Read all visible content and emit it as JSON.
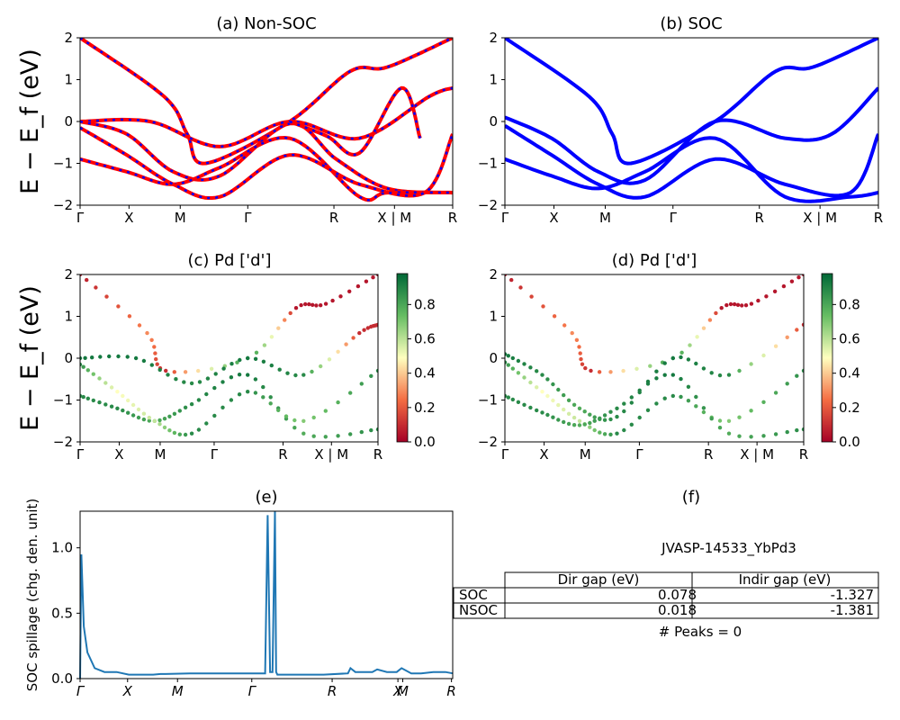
{
  "figure": {
    "ylabel_main": "E − E_f (eV)",
    "yticks": [
      "2",
      "1",
      "0",
      "−1",
      "−2"
    ],
    "kpath_labels": [
      "Γ",
      "X",
      "M",
      "Γ",
      "R",
      "X | M",
      "R"
    ],
    "kpath_labels_e": [
      "Γ",
      "X",
      "M",
      "Γ",
      "R",
      "X",
      "M",
      "R"
    ],
    "colorbar_ticks": [
      "0.8",
      "0.6",
      "0.4",
      "0.2",
      "0.0"
    ],
    "spillage_yticks": [
      "1.0",
      "0.5",
      "0.0"
    ],
    "spillage_ylabel": "SOC spillage (chg. den. unit)"
  },
  "panels": {
    "a": {
      "title": "(a) Non-SOC"
    },
    "b": {
      "title": "(b) SOC"
    },
    "c": {
      "title": "(c)  Pd ['d']"
    },
    "d": {
      "title": "(d) Pd ['d']"
    },
    "e": {
      "title": "(e)"
    },
    "f": {
      "title": "(f)",
      "material": "JVASP-14533_YbPd3",
      "col_headers": [
        "Dir gap (eV)",
        "Indir gap (eV)"
      ],
      "rows": [
        {
          "label": "SOC",
          "dir": "0.078",
          "indir": "-1.327"
        },
        {
          "label": "NSOC",
          "dir": "0.018",
          "indir": "-1.381"
        }
      ],
      "peaks_text": "# Peaks = 0"
    }
  },
  "colors": {
    "nonsoc": "#ff0000",
    "soc": "#0000ff",
    "spillage": "#1f77b4"
  },
  "chart_data": [
    {
      "type": "line",
      "title": "(a) Non-SOC",
      "ylabel": "E − E_f (eV)",
      "ylim": [
        -2,
        2
      ],
      "x_ticks": [
        "Γ",
        "X",
        "M",
        "Γ",
        "R",
        "X | M",
        "R"
      ],
      "series": [
        {
          "name": "",
          "x": [
            0,
            1.8,
            2.3,
            2.7,
            4.5,
            5.8,
            6.6,
            8.0
          ],
          "values": [
            2.0,
            0.6,
            -0.3,
            -1.0,
            0.0,
            1.2,
            1.3,
            2.0
          ]
        },
        {
          "name": "",
          "x": [
            0,
            1.5,
            3.0,
            4.5,
            6.0,
            7.5,
            8.0
          ],
          "values": [
            0.0,
            0.0,
            -0.6,
            0.0,
            -0.4,
            0.6,
            0.8
          ]
        },
        {
          "name": "",
          "x": [
            0,
            1.0,
            2.0,
            3.0,
            4.5,
            5.5,
            6.6,
            8.0
          ],
          "values": [
            0.0,
            -0.3,
            -1.2,
            -1.3,
            -0.05,
            -0.9,
            -1.6,
            -1.7
          ]
        },
        {
          "name": "",
          "x": [
            0,
            1.0,
            2.0,
            3.0,
            4.5,
            6.0,
            6.6,
            8.0
          ],
          "values": [
            -0.9,
            -1.2,
            -1.5,
            -1.1,
            -0.4,
            -1.8,
            -1.7,
            -1.7
          ]
        },
        {
          "name": "",
          "x": [
            0,
            1.0,
            2.0,
            3.0,
            4.5,
            6.0,
            7.4,
            8.0
          ],
          "values": [
            -0.15,
            -0.8,
            -1.5,
            -1.8,
            -0.8,
            -1.5,
            -1.7,
            -0.3
          ]
        },
        {
          "name": "",
          "x": [
            4.5,
            5.3,
            6.0,
            6.9,
            7.3
          ],
          "values": [
            0.0,
            -0.35,
            -0.75,
            0.8,
            -0.4
          ]
        }
      ]
    },
    {
      "type": "line",
      "title": "(b) SOC",
      "ylim": [
        -2,
        2
      ],
      "x_ticks": [
        "Γ",
        "X",
        "M",
        "Γ",
        "R",
        "X | M",
        "R"
      ],
      "series": [
        {
          "name": "",
          "x": [
            0,
            1.8,
            2.3,
            2.7,
            4.5,
            5.8,
            6.6,
            8.0
          ],
          "values": [
            2.0,
            0.6,
            -0.3,
            -1.0,
            0.0,
            1.2,
            1.3,
            2.0
          ]
        },
        {
          "name": "",
          "x": [
            0,
            1.0,
            2.0,
            3.0,
            4.5,
            6.0,
            7.0,
            8.0
          ],
          "values": [
            0.1,
            -0.4,
            -1.2,
            -1.4,
            0.0,
            -0.4,
            -0.3,
            0.8
          ]
        },
        {
          "name": "",
          "x": [
            0,
            1.0,
            2.0,
            3.0,
            4.5,
            6.0,
            7.4,
            8.0
          ],
          "values": [
            -0.1,
            -0.8,
            -1.5,
            -1.8,
            -0.9,
            -1.5,
            -1.7,
            -0.3
          ]
        },
        {
          "name": "",
          "x": [
            0,
            1.0,
            2.0,
            3.0,
            4.5,
            6.0,
            7.4,
            8.0
          ],
          "values": [
            -0.9,
            -1.3,
            -1.6,
            -1.2,
            -0.4,
            -1.8,
            -1.8,
            -1.7
          ]
        }
      ]
    },
    {
      "type": "scatter",
      "title": "(c)  Pd ['d']",
      "ylim": [
        -2,
        2
      ],
      "colorbar": {
        "min": 0.0,
        "max": 1.0,
        "ticks": [
          0.0,
          0.2,
          0.4,
          0.6,
          0.8
        ]
      },
      "series": [
        {
          "name": "",
          "x": [
            0,
            1.8,
            2.3,
            4.5,
            5.8,
            6.6,
            8.0
          ],
          "values": [
            2.0,
            0.6,
            -0.3,
            0.0,
            1.2,
            1.3,
            2.0
          ],
          "weight": [
            0.05,
            0.3,
            0.1,
            0.9,
            0.05,
            0.05,
            0.05
          ]
        },
        {
          "name": "",
          "x": [
            0,
            1.5,
            3.0,
            4.5,
            6.0,
            7.5,
            8.0
          ],
          "values": [
            0.0,
            0.0,
            -0.6,
            0.0,
            -0.4,
            0.6,
            0.8
          ],
          "weight": [
            0.95,
            0.95,
            0.9,
            0.95,
            0.9,
            0.1,
            0.1
          ]
        },
        {
          "name": "",
          "x": [
            0,
            1.0,
            2.0,
            3.0,
            4.5,
            6.0,
            8.0
          ],
          "values": [
            -0.9,
            -1.2,
            -1.5,
            -1.1,
            -0.4,
            -1.8,
            -1.7
          ],
          "weight": [
            0.9,
            0.9,
            0.8,
            0.9,
            0.95,
            0.8,
            0.9
          ]
        },
        {
          "name": "",
          "x": [
            0,
            1.0,
            2.0,
            3.0,
            4.5,
            6.0,
            8.0
          ],
          "values": [
            -0.15,
            -0.8,
            -1.5,
            -1.8,
            -0.8,
            -1.5,
            -0.3
          ],
          "weight": [
            0.9,
            0.5,
            0.6,
            0.9,
            0.9,
            0.7,
            0.9
          ]
        }
      ]
    },
    {
      "type": "scatter",
      "title": "(d) Pd ['d']",
      "ylim": [
        -2,
        2
      ],
      "colorbar": {
        "min": 0.0,
        "max": 1.0,
        "ticks": [
          0.0,
          0.2,
          0.4,
          0.6,
          0.8
        ]
      },
      "series": [
        {
          "name": "",
          "x": [
            0,
            1.8,
            2.3,
            4.5,
            5.8,
            6.6,
            8.0
          ],
          "values": [
            2.0,
            0.6,
            -0.3,
            0.0,
            1.2,
            1.3,
            2.0
          ],
          "weight": [
            0.05,
            0.3,
            0.1,
            0.9,
            0.05,
            0.05,
            0.05
          ]
        },
        {
          "name": "",
          "x": [
            0,
            1.0,
            2.0,
            3.0,
            4.5,
            6.0,
            8.0
          ],
          "values": [
            0.1,
            -0.4,
            -1.2,
            -1.4,
            0.0,
            -0.4,
            0.8
          ],
          "weight": [
            0.95,
            0.9,
            0.8,
            0.9,
            0.95,
            0.9,
            0.1
          ]
        },
        {
          "name": "",
          "x": [
            0,
            1.0,
            2.0,
            3.0,
            4.5,
            6.0,
            8.0
          ],
          "values": [
            -0.1,
            -0.8,
            -1.5,
            -1.8,
            -0.9,
            -1.5,
            -0.3
          ],
          "weight": [
            0.9,
            0.5,
            0.6,
            0.9,
            0.9,
            0.7,
            0.9
          ]
        },
        {
          "name": "",
          "x": [
            0,
            1.0,
            2.0,
            3.0,
            4.5,
            6.0,
            8.0
          ],
          "values": [
            -0.9,
            -1.3,
            -1.6,
            -1.2,
            -0.4,
            -1.8,
            -1.7
          ],
          "weight": [
            0.9,
            0.9,
            0.8,
            0.9,
            0.95,
            0.8,
            0.9
          ]
        }
      ]
    },
    {
      "type": "line",
      "title": "(e)",
      "ylabel": "SOC spillage (chg. den. unit)",
      "ylim": [
        0,
        1.28
      ],
      "x_ticks": [
        "Γ",
        "X",
        "M",
        "Γ",
        "R",
        "X",
        "M",
        "R"
      ],
      "series": [
        {
          "name": "",
          "x": [
            0,
            0.05,
            0.15,
            0.3,
            0.6,
            1.0,
            1.5,
            2.0,
            2.5,
            3.0,
            3.3,
            3.5,
            4.5,
            7.6,
            7.7,
            7.8,
            7.9,
            8.0,
            8.05,
            8.1,
            8.5,
            10.0,
            11.0,
            11.1,
            11.3,
            12.0,
            12.2,
            12.6,
            13.0,
            13.2,
            13.6,
            14.0,
            14.5,
            15.0,
            15.3
          ],
          "values": [
            0.0,
            0.95,
            0.4,
            0.2,
            0.08,
            0.05,
            0.05,
            0.03,
            0.03,
            0.03,
            0.035,
            0.035,
            0.04,
            0.04,
            1.25,
            0.05,
            0.05,
            1.28,
            0.05,
            0.03,
            0.03,
            0.03,
            0.04,
            0.08,
            0.05,
            0.05,
            0.07,
            0.05,
            0.05,
            0.08,
            0.04,
            0.04,
            0.05,
            0.05,
            0.04
          ]
        }
      ]
    }
  ]
}
